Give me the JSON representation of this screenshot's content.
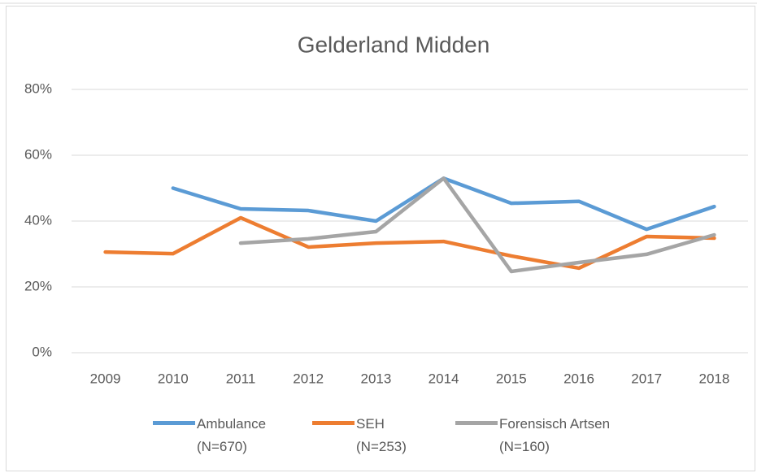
{
  "chart_data": {
    "type": "line",
    "title": "Gelderland Midden",
    "categories": [
      "2009",
      "2010",
      "2011",
      "2012",
      "2013",
      "2014",
      "2015",
      "2016",
      "2017",
      "2018"
    ],
    "series": [
      {
        "name": "Ambulance\n(N=670)",
        "color": "#5b9bd5",
        "values": [
          null,
          50,
          43.7,
          43.2,
          40,
          53,
          45.4,
          46,
          37.5,
          44.4
        ]
      },
      {
        "name": "SEH\n(N=253)",
        "color": "#ed7d31",
        "values": [
          30.6,
          30.1,
          41,
          32.1,
          33.3,
          33.8,
          29.4,
          25.7,
          35.3,
          34.8
        ]
      },
      {
        "name": "Forensisch Artsen\n(N=160)",
        "color": "#a5a5a5",
        "values": [
          null,
          null,
          33.3,
          34.6,
          36.8,
          53,
          24.7,
          27.4,
          29.9,
          35.8
        ]
      }
    ],
    "ylim": [
      0,
      80
    ],
    "yticks": [
      {
        "value": 0,
        "label": "0%"
      },
      {
        "value": 20,
        "label": "20%"
      },
      {
        "value": 40,
        "label": "40%"
      },
      {
        "value": 60,
        "label": "60%"
      },
      {
        "value": 80,
        "label": "80%"
      }
    ],
    "grid": true
  }
}
